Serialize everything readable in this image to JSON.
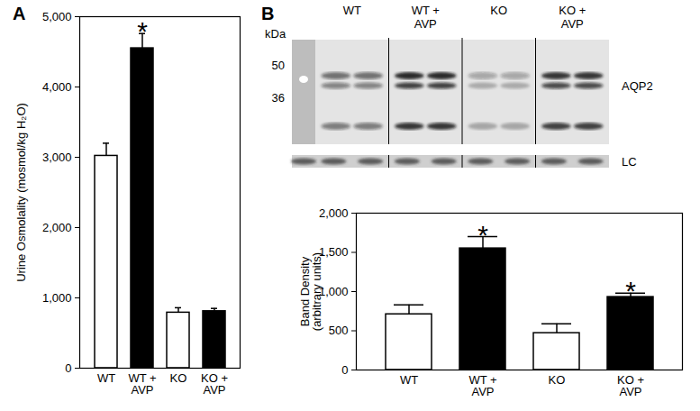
{
  "chart_data": [
    {
      "type": "bar",
      "panel_label": "A",
      "categories": [
        "WT",
        "WT +\nAVP",
        "KO",
        "KO +\nAVP"
      ],
      "values": [
        3020,
        4550,
        790,
        810
      ],
      "errors": [
        180,
        210,
        70,
        40
      ],
      "colors": [
        "#ffffff",
        "#000000",
        "#ffffff",
        "#000000"
      ],
      "annotations": [
        null,
        "*",
        null,
        null
      ],
      "ylabel": "Urine Osmolality (mosmol/kg H₂O)",
      "ylim": [
        0,
        5000
      ],
      "yticks": [
        0,
        1000,
        2000,
        3000,
        4000,
        5000
      ],
      "grid": false
    },
    {
      "type": "bar",
      "panel_label": "B",
      "categories": [
        "WT",
        "WT +\nAVP",
        "KO",
        "KO +\nAVP"
      ],
      "values": [
        710,
        1550,
        470,
        930
      ],
      "errors": [
        120,
        150,
        120,
        50
      ],
      "colors": [
        "#ffffff",
        "#000000",
        "#ffffff",
        "#000000"
      ],
      "annotations": [
        null,
        "*",
        null,
        "*"
      ],
      "ylabel": "Band Density\n(arbitrary units)",
      "ylim": [
        0,
        2000
      ],
      "yticks": [
        0,
        500,
        1000,
        1500,
        2000
      ],
      "grid": false
    }
  ],
  "blot": {
    "marker_unit": "kDa",
    "markers": [
      50,
      36
    ],
    "lanes": [
      "WT",
      "WT +\nAVP",
      "KO",
      "KO +\nAVP"
    ],
    "band_label": "AQP2",
    "loading_label": "LC"
  }
}
